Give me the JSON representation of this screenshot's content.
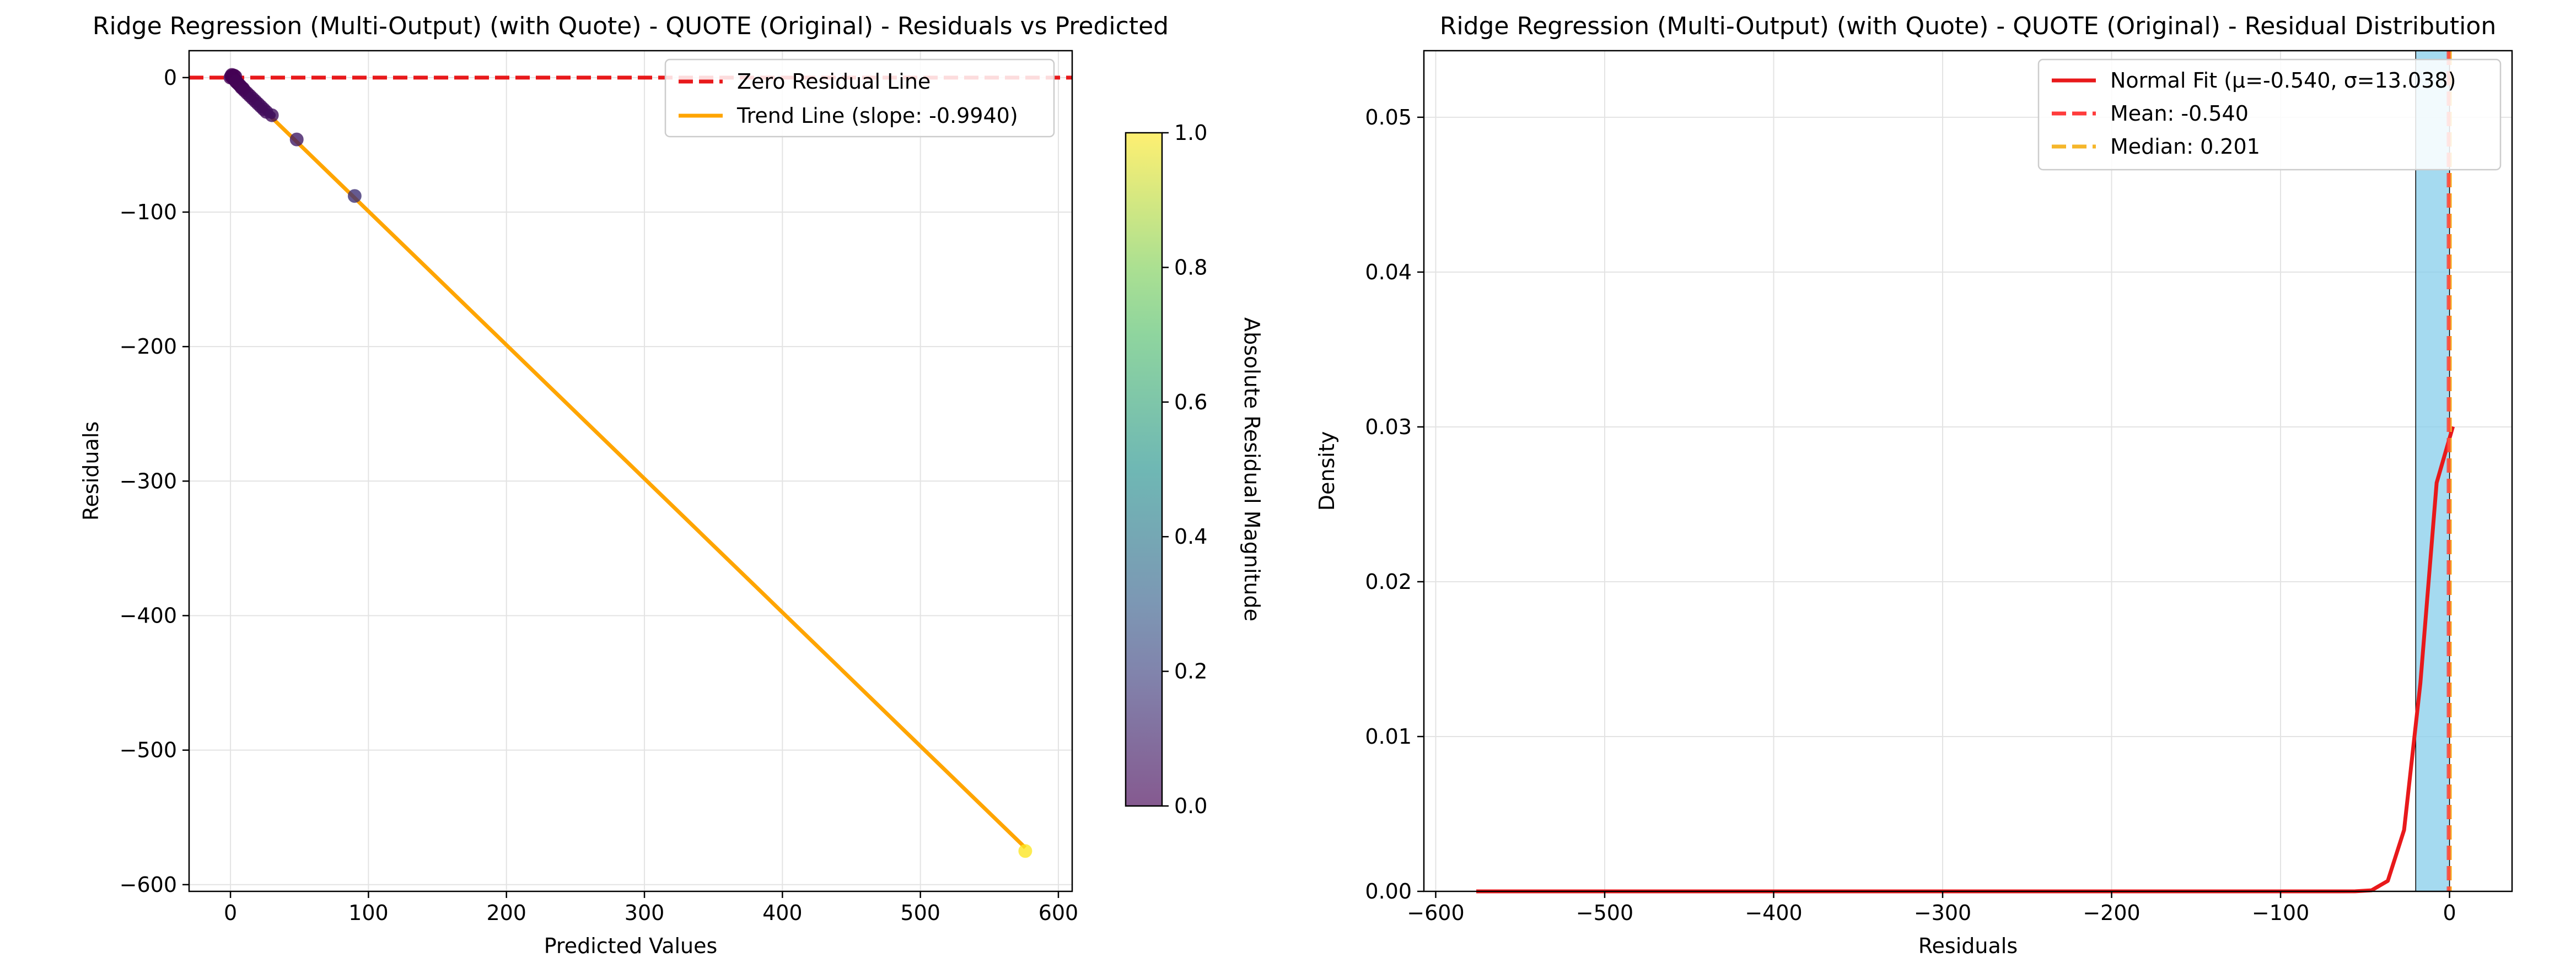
{
  "chart_data": [
    {
      "type": "scatter",
      "title": "Ridge Regression (Multi-Output) (with Quote) - QUOTE (Original) - Residuals vs Predicted",
      "xlabel": "Predicted Values",
      "ylabel": "Residuals",
      "xlim": [
        -30,
        610
      ],
      "ylim": [
        -605,
        20
      ],
      "xticks": [
        0,
        100,
        200,
        300,
        400,
        500,
        600
      ],
      "yticks": [
        0,
        -100,
        -200,
        -300,
        -400,
        -500,
        -600
      ],
      "grid": true,
      "legend_position": "top-right",
      "points": [
        {
          "x": 0.0,
          "y": 0.0,
          "c": 0.0
        },
        {
          "x": 0.5,
          "y": 1.0,
          "c": 0.0
        },
        {
          "x": 1.0,
          "y": 2.0,
          "c": 0.0
        },
        {
          "x": 1.5,
          "y": 0.5,
          "c": 0.0
        },
        {
          "x": 2.0,
          "y": -0.5,
          "c": 0.0
        },
        {
          "x": 2.5,
          "y": 1.5,
          "c": 0.0
        },
        {
          "x": 3.0,
          "y": -1.5,
          "c": 0.0
        },
        {
          "x": 3.5,
          "y": 0.8,
          "c": 0.0
        },
        {
          "x": 4.0,
          "y": -3.0,
          "c": 0.01
        },
        {
          "x": 5.0,
          "y": -4.0,
          "c": 0.01
        },
        {
          "x": 6.0,
          "y": -5.0,
          "c": 0.01
        },
        {
          "x": 7.0,
          "y": -6.0,
          "c": 0.01
        },
        {
          "x": 8.0,
          "y": -7.5,
          "c": 0.01
        },
        {
          "x": 9.0,
          "y": -8.0,
          "c": 0.01
        },
        {
          "x": 10.0,
          "y": -9.5,
          "c": 0.02
        },
        {
          "x": 12.0,
          "y": -11.5,
          "c": 0.02
        },
        {
          "x": 14.0,
          "y": -13.5,
          "c": 0.02
        },
        {
          "x": 16.0,
          "y": -15.5,
          "c": 0.03
        },
        {
          "x": 18.0,
          "y": -17.5,
          "c": 0.03
        },
        {
          "x": 20.0,
          "y": -19.5,
          "c": 0.03
        },
        {
          "x": 22.0,
          "y": -21.5,
          "c": 0.04
        },
        {
          "x": 24.0,
          "y": -23.5,
          "c": 0.04
        },
        {
          "x": 26.0,
          "y": -25.5,
          "c": 0.04
        },
        {
          "x": 30.0,
          "y": -28.0,
          "c": 0.05
        },
        {
          "x": 48.0,
          "y": -46.0,
          "c": 0.08
        },
        {
          "x": 90.0,
          "y": -88.0,
          "c": 0.15
        },
        {
          "x": 576.0,
          "y": -575.0,
          "c": 1.0
        }
      ],
      "zero_line": {
        "y": 0,
        "color": "#e8191b",
        "label": "Zero Residual Line"
      },
      "trend_line": {
        "slope": -0.994,
        "intercept": 0.0,
        "x_range": [
          0,
          576
        ],
        "color": "#ffa500",
        "label": "Trend Line (slope: -0.9940)"
      },
      "colorbar": {
        "label": "Absolute Residual Magnitude",
        "range": [
          0.0,
          1.0
        ],
        "ticks": [
          "0.0",
          "0.2",
          "0.4",
          "0.6",
          "0.8",
          "1.0"
        ],
        "colormap": "viridis"
      }
    },
    {
      "type": "histogram",
      "title": "Ridge Regression (Multi-Output) (with Quote) - QUOTE (Original) - Residual Distribution",
      "xlabel": "Residuals",
      "ylabel": "Density",
      "xlim": [
        -607,
        37
      ],
      "ylim": [
        0,
        0.0543
      ],
      "xticks": [
        -600,
        -500,
        -400,
        -300,
        -200,
        -100,
        0
      ],
      "yticks": [
        "0.00",
        "0.01",
        "0.02",
        "0.03",
        "0.04",
        "0.05"
      ],
      "grid": true,
      "legend_position": "top-right",
      "bars": [
        {
          "x0": -20,
          "x1": 0,
          "density": 0.0543
        }
      ],
      "bar_color": "#87ceeb",
      "normal_fit": {
        "mu": -0.54,
        "sigma": 13.038,
        "x_range": [
          -576,
          2
        ],
        "color": "#e8191b",
        "label": "Normal Fit (μ=-0.540, σ=13.038)"
      },
      "mean_line": {
        "x": -0.54,
        "color": "#ff3b3b",
        "label": "Mean: -0.540"
      },
      "median_line": {
        "x": 0.201,
        "color": "#f5b62a",
        "label": "Median: 0.201"
      }
    }
  ]
}
